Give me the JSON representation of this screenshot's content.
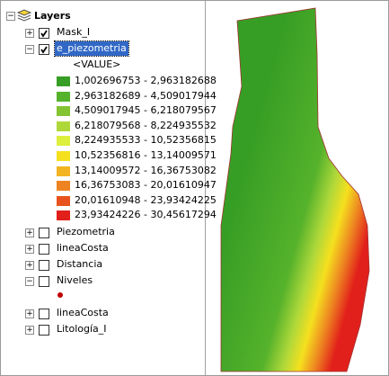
{
  "toc": {
    "root": {
      "name": "Layers",
      "expanded": true
    },
    "layers": [
      {
        "name": "Mask_I",
        "checked": true,
        "expanded": false
      },
      {
        "name": "e_piezometria",
        "checked": true,
        "expanded": true,
        "selected": true,
        "field": "<VALUE>",
        "classes": [
          {
            "label": "1,002696753 - 2,963182688",
            "color": "#379e25"
          },
          {
            "label": "2,963182689 - 4,509017944",
            "color": "#55b22b"
          },
          {
            "label": "4,509017945 - 6,218079567",
            "color": "#82c431"
          },
          {
            "label": "6,218079568 - 8,224935532",
            "color": "#aed83a"
          },
          {
            "label": "8,224935533 - 10,52356815",
            "color": "#dcef3c"
          },
          {
            "label": "10,52356816 - 13,14009571",
            "color": "#f5e01e"
          },
          {
            "label": "13,14009572 - 16,36753082",
            "color": "#f3b422"
          },
          {
            "label": "16,36753083 - 20,01610947",
            "color": "#ed8421"
          },
          {
            "label": "20,01610948 - 23,93424225",
            "color": "#e7521e"
          },
          {
            "label": "23,93424226 - 30,45617294",
            "color": "#e2201b"
          }
        ]
      },
      {
        "name": "Piezometria",
        "checked": false,
        "expanded": false
      },
      {
        "name": "lineaCosta",
        "checked": false,
        "expanded": false
      },
      {
        "name": "Distancia",
        "checked": false,
        "expanded": false
      },
      {
        "name": "Niveles",
        "checked": false,
        "expanded": true,
        "symbol_color": "#c00000"
      },
      {
        "name": "lineaCosta",
        "checked": false,
        "expanded": false
      },
      {
        "name": "Litología_I",
        "checked": false,
        "expanded": false
      }
    ]
  }
}
